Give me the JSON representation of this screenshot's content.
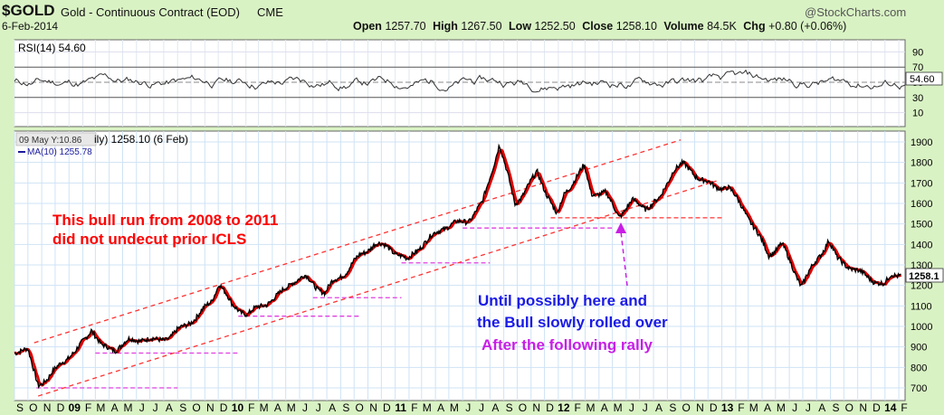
{
  "header": {
    "symbol": "$GOLD",
    "name": "Gold - Continuous Contract (EOD)",
    "exchange": "CME",
    "watermark": "@StockCharts.com",
    "date": "6-Feb-2014",
    "open_label": "Open",
    "open": "1257.70",
    "high_label": "High",
    "high": "1267.50",
    "low_label": "Low",
    "low": "1252.50",
    "close_label": "Close",
    "close": "1258.10",
    "volume_label": "Volume",
    "volume": "84.5K",
    "chg_label": "Chg",
    "chg": "+0.80 (+0.06%)"
  },
  "rsi_panel": {
    "label": "RSI(14) 54.60",
    "current": "54.60",
    "ticks": [
      "90",
      "70",
      "50",
      "30",
      "10"
    ],
    "levels": [
      90,
      70,
      50,
      30,
      10
    ]
  },
  "price_panel": {
    "legend_line1": "ily) 1258.10 (6 Feb)",
    "tooltip": "09 May Y:10.86",
    "legend_ma": "MA(10) 1255.78",
    "last_price_tag": "1258.1",
    "y_ticks": [
      "1900",
      "1800",
      "1700",
      "1600",
      "1500",
      "1400",
      "1300",
      "1200",
      "1100",
      "1000",
      "900",
      "800",
      "700"
    ]
  },
  "annotations": {
    "red_text": [
      "This bull run from 2008 to 2011",
      "did not undecut prior ICLS"
    ],
    "blue_text": [
      "Until possibly here and",
      "the Bull slowly rolled over"
    ],
    "purple_text": "After the following rally"
  },
  "x_axis_labels": [
    "S",
    "O",
    "N",
    "D",
    "09",
    "F",
    "M",
    "A",
    "M",
    "J",
    "J",
    "A",
    "S",
    "O",
    "N",
    "D",
    "10",
    "F",
    "M",
    "A",
    "M",
    "J",
    "J",
    "A",
    "S",
    "O",
    "N",
    "D",
    "11",
    "F",
    "M",
    "A",
    "M",
    "J",
    "J",
    "A",
    "S",
    "O",
    "N",
    "D",
    "12",
    "F",
    "M",
    "A",
    "M",
    "J",
    "J",
    "A",
    "S",
    "O",
    "N",
    "D",
    "13",
    "F",
    "M",
    "A",
    "M",
    "J",
    "J",
    "A",
    "S",
    "O",
    "N",
    "D",
    "14",
    "F"
  ],
  "colors": {
    "background": "#d9f2c4",
    "price": "#000000",
    "ma": "#e00000",
    "annotation_red": "#ff0000",
    "annotation_blue": "#1a1ae6",
    "annotation_purple": "#c81ee6",
    "support_line": "#e040e0"
  },
  "chart_data": {
    "type": "line",
    "title": "$GOLD Gold - Continuous Contract (EOD) CME",
    "x_start": "2008-09",
    "x_end": "2014-02",
    "ylim": [
      650,
      1950
    ],
    "series": [
      {
        "name": "Close",
        "points": [
          [
            "2008-09-01",
            880
          ],
          [
            "2008-10-01",
            880
          ],
          [
            "2008-10-24",
            720
          ],
          [
            "2008-11-15",
            740
          ],
          [
            "2008-12-15",
            830
          ],
          [
            "2009-01-15",
            870
          ],
          [
            "2009-02-20",
            990
          ],
          [
            "2009-03-15",
            900
          ],
          [
            "2009-04-15",
            890
          ],
          [
            "2009-05-15",
            930
          ],
          [
            "2009-06-15",
            940
          ],
          [
            "2009-07-15",
            930
          ],
          [
            "2009-08-15",
            950
          ],
          [
            "2009-09-15",
            1000
          ],
          [
            "2009-10-15",
            1050
          ],
          [
            "2009-11-15",
            1120
          ],
          [
            "2009-12-03",
            1215
          ],
          [
            "2010-01-01",
            1100
          ],
          [
            "2010-02-05",
            1060
          ],
          [
            "2010-03-15",
            1110
          ],
          [
            "2010-04-15",
            1150
          ],
          [
            "2010-05-15",
            1220
          ],
          [
            "2010-06-15",
            1240
          ],
          [
            "2010-07-28",
            1160
          ],
          [
            "2010-08-15",
            1220
          ],
          [
            "2010-09-15",
            1270
          ],
          [
            "2010-10-15",
            1350
          ],
          [
            "2010-11-15",
            1400
          ],
          [
            "2010-12-15",
            1390
          ],
          [
            "2011-01-28",
            1320
          ],
          [
            "2011-02-15",
            1370
          ],
          [
            "2011-03-15",
            1420
          ],
          [
            "2011-04-15",
            1480
          ],
          [
            "2011-05-15",
            1500
          ],
          [
            "2011-06-15",
            1520
          ],
          [
            "2011-07-15",
            1600
          ],
          [
            "2011-08-22",
            1890
          ],
          [
            "2011-09-26",
            1600
          ],
          [
            "2011-10-15",
            1650
          ],
          [
            "2011-11-15",
            1750
          ],
          [
            "2011-12-29",
            1540
          ],
          [
            "2012-01-15",
            1650
          ],
          [
            "2012-02-28",
            1780
          ],
          [
            "2012-03-15",
            1650
          ],
          [
            "2012-04-15",
            1650
          ],
          [
            "2012-05-16",
            1540
          ],
          [
            "2012-06-15",
            1610
          ],
          [
            "2012-07-15",
            1580
          ],
          [
            "2012-08-15",
            1620
          ],
          [
            "2012-09-15",
            1770
          ],
          [
            "2012-10-05",
            1790
          ],
          [
            "2012-11-15",
            1720
          ],
          [
            "2012-12-15",
            1680
          ],
          [
            "2013-01-15",
            1680
          ],
          [
            "2013-02-20",
            1570
          ],
          [
            "2013-04-16",
            1350
          ],
          [
            "2013-05-15",
            1400
          ],
          [
            "2013-06-28",
            1200
          ],
          [
            "2013-08-28",
            1420
          ],
          [
            "2013-09-15",
            1330
          ],
          [
            "2013-10-15",
            1290
          ],
          [
            "2013-11-15",
            1250
          ],
          [
            "2013-12-31",
            1200
          ],
          [
            "2014-01-15",
            1250
          ],
          [
            "2014-02-06",
            1258
          ]
        ]
      },
      {
        "name": "MA(10)",
        "values_note": "follows close",
        "last": 1255.78
      }
    ],
    "trendlines": [
      {
        "from": [
          "2008-10-15",
          920
        ],
        "to": [
          "2012-10-01",
          1910
        ]
      },
      {
        "from": [
          "2008-10-24",
          660
        ],
        "to": [
          "2012-12-20",
          1710
        ]
      }
    ],
    "support_levels": [
      700,
      870,
      1050,
      1140,
      1310,
      1480,
      1530
    ]
  }
}
